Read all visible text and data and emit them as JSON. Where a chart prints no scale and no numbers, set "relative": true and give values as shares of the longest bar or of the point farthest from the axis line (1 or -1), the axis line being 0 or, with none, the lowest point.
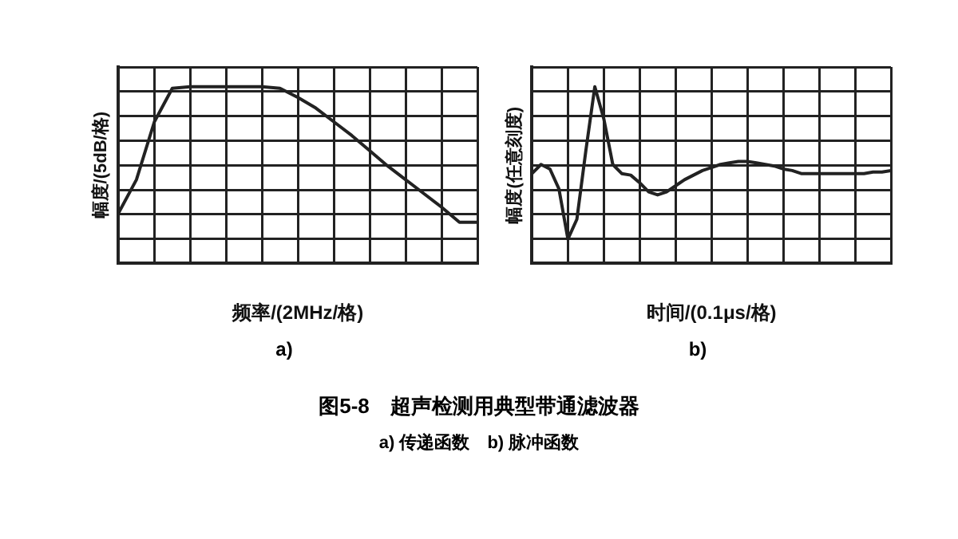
{
  "chart_data": [
    {
      "type": "line",
      "relative": true,
      "grid": true,
      "legend": false,
      "marker": "none",
      "line_style": "solid",
      "xlabel": "频率/(2MHz/格)",
      "ylabel": "幅度/(5dB/格)",
      "annotations": [
        "a)"
      ],
      "title": "图5-8　超声检测用典型带通滤波器",
      "subtitle": "a) 传递函数　b) 脉冲函数",
      "categories": [
        null,
        null,
        null,
        null,
        null,
        null,
        null,
        null,
        null,
        null,
        null,
        null,
        null,
        null,
        null,
        null,
        null,
        null,
        null,
        null,
        null
      ],
      "series": [
        {
          "color": "#222222",
          "values": [
            0.17,
            0.39,
            0.77,
            0.99,
            1,
            1,
            1,
            1,
            1,
            0.99,
            0.93,
            0.86,
            0.77,
            0.68,
            0.58,
            0.48,
            0.39,
            0.3,
            0.21,
            0.11,
            0.11
          ]
        }
      ]
    },
    {
      "type": "line",
      "relative": true,
      "grid": true,
      "legend": false,
      "marker": "none",
      "line_style": "solid",
      "xlabel": "时间/(0.1μs/格)",
      "ylabel": "幅度(任意刻度)",
      "annotations": [
        "b)"
      ],
      "categories": [
        null,
        null,
        null,
        null,
        null,
        null,
        null,
        null,
        null,
        null,
        null,
        null,
        null,
        null,
        null,
        null,
        null,
        null,
        null,
        null,
        null,
        null,
        null,
        null,
        null,
        null,
        null,
        null,
        null,
        null,
        null,
        null,
        null,
        null,
        null,
        null,
        null,
        null,
        null,
        null,
        null
      ],
      "series": [
        {
          "color": "#222222",
          "values": [
            0.43,
            0.49,
            0.46,
            0.33,
            0,
            0.13,
            0.58,
            1,
            0.79,
            0.49,
            0.43,
            0.42,
            0.37,
            0.31,
            0.29,
            0.31,
            0.35,
            0.39,
            0.42,
            0.45,
            0.47,
            0.49,
            0.5,
            0.51,
            0.51,
            0.5,
            0.49,
            0.48,
            0.46,
            0.45,
            0.43,
            0.43,
            0.43,
            0.43,
            0.43,
            0.43,
            0.43,
            0.43,
            0.44,
            0.44,
            0.45
          ]
        }
      ]
    }
  ]
}
